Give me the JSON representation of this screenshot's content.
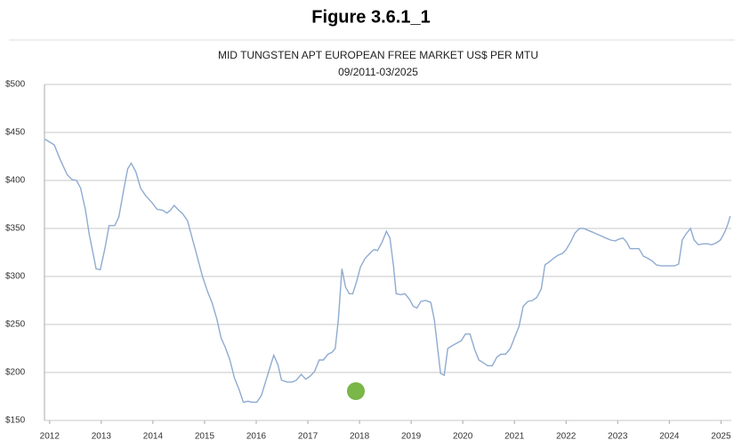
{
  "header": {
    "title": "Figure 3.6.1_1"
  },
  "chart_data": {
    "type": "line",
    "title": "MID TUNGSTEN APT EUROPEAN FREE MARKET US$ PER MTU",
    "subtitle": "09/2011-03/2025",
    "xlim": [
      2011.9,
      2025.2
    ],
    "xticks": [
      2012,
      2013,
      2014,
      2015,
      2016,
      2017,
      2018,
      2019,
      2020,
      2021,
      2022,
      2023,
      2024,
      2025
    ],
    "ylim": [
      150,
      500
    ],
    "yticks": [
      {
        "value": 150,
        "label": "$150"
      },
      {
        "value": 200,
        "label": "$200"
      },
      {
        "value": 250,
        "label": "$250"
      },
      {
        "value": 300,
        "label": "$300"
      },
      {
        "value": 350,
        "label": "$350"
      },
      {
        "value": 400,
        "label": "$400"
      },
      {
        "value": 450,
        "label": "$450"
      },
      {
        "value": 500,
        "label": "$500"
      }
    ],
    "grid": true,
    "color": "#8fabd0",
    "x": [
      2011.91,
      2012.09,
      2012.21,
      2012.34,
      2012.43,
      2012.52,
      2012.6,
      2012.69,
      2012.77,
      2012.86,
      2012.9,
      2012.98,
      2013.07,
      2013.15,
      2013.26,
      2013.34,
      2013.43,
      2013.51,
      2013.58,
      2013.67,
      2013.76,
      2013.86,
      2013.98,
      2014.08,
      2014.19,
      2014.27,
      2014.34,
      2014.41,
      2014.5,
      2014.58,
      2014.67,
      2014.75,
      2014.84,
      2014.96,
      2015.06,
      2015.15,
      2015.24,
      2015.32,
      2015.41,
      2015.49,
      2015.58,
      2015.67,
      2015.75,
      2015.84,
      2015.92,
      2016.01,
      2016.1,
      2016.18,
      2016.27,
      2016.34,
      2016.42,
      2016.49,
      2016.6,
      2016.7,
      2016.78,
      2016.87,
      2016.96,
      2017.04,
      2017.13,
      2017.22,
      2017.3,
      2017.39,
      2017.47,
      2017.53,
      2017.59,
      2017.66,
      2017.73,
      2017.8,
      2017.87,
      2017.94,
      2018.02,
      2018.11,
      2018.2,
      2018.28,
      2018.35,
      2018.44,
      2018.52,
      2018.59,
      2018.66,
      2018.71,
      2018.8,
      2018.88,
      2018.97,
      2019.04,
      2019.11,
      2019.19,
      2019.28,
      2019.38,
      2019.45,
      2019.52,
      2019.57,
      2019.64,
      2019.71,
      2019.83,
      2019.97,
      2020.05,
      2020.14,
      2020.23,
      2020.31,
      2020.4,
      2020.48,
      2020.57,
      2020.66,
      2020.74,
      2020.83,
      2020.92,
      2021.0,
      2021.09,
      2021.17,
      2021.26,
      2021.35,
      2021.43,
      2021.52,
      2021.59,
      2021.67,
      2021.76,
      2021.84,
      2021.93,
      2022.0,
      2022.09,
      2022.17,
      2022.26,
      2022.34,
      2022.43,
      2022.52,
      2022.6,
      2022.69,
      2022.77,
      2022.86,
      2022.95,
      2023.03,
      2023.1,
      2023.17,
      2023.24,
      2023.32,
      2023.41,
      2023.5,
      2023.58,
      2023.67,
      2023.75,
      2023.84,
      2023.93,
      2024.01,
      2024.1,
      2024.18,
      2024.25,
      2024.32,
      2024.41,
      2024.48,
      2024.56,
      2024.65,
      2024.74,
      2024.82,
      2024.91,
      2024.99,
      2025.08,
      2025.13,
      2025.18
    ],
    "values": [
      443,
      437,
      421,
      406,
      401,
      400,
      392,
      370,
      343,
      319,
      308,
      307,
      329,
      353,
      353,
      362,
      389,
      412,
      418,
      409,
      392,
      384,
      377,
      370,
      369,
      366,
      369,
      374,
      369,
      365,
      358,
      342,
      324,
      300,
      284,
      272,
      255,
      236,
      225,
      213,
      194,
      182,
      169,
      170,
      169,
      169,
      176,
      190,
      206,
      218,
      208,
      192,
      190,
      190,
      192,
      198,
      193,
      196,
      201,
      213,
      213,
      219,
      221,
      225,
      255,
      308,
      289,
      282,
      282,
      294,
      310,
      319,
      324,
      328,
      327,
      336,
      347,
      340,
      310,
      282,
      281,
      282,
      276,
      269,
      267,
      274,
      275,
      273,
      255,
      222,
      199,
      197,
      225,
      229,
      233,
      240,
      240,
      224,
      213,
      210,
      207,
      207,
      216,
      219,
      219,
      225,
      236,
      248,
      269,
      274,
      275,
      278,
      287,
      312,
      315,
      319,
      322,
      324,
      328,
      336,
      345,
      350,
      350,
      348,
      346,
      344,
      342,
      340,
      338,
      337,
      339,
      340,
      336,
      329,
      329,
      329,
      321,
      319,
      316,
      312,
      311,
      311,
      311,
      311,
      313,
      338,
      344,
      350,
      338,
      333,
      334,
      334,
      333,
      335,
      338,
      347,
      354,
      363
    ]
  }
}
